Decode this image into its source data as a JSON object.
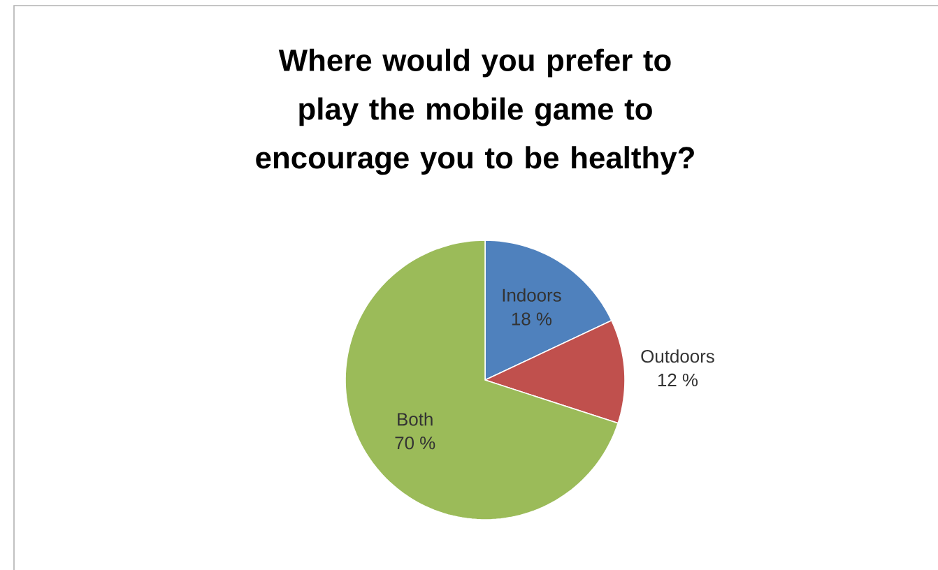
{
  "chart_data": {
    "type": "pie",
    "title": "Where would you prefer to play the mobile game to encourage you to be healthy?",
    "categories": [
      "Indoors",
      "Outdoors",
      "Both"
    ],
    "values": [
      18,
      12,
      70
    ],
    "value_labels": [
      "18 %",
      "12 %",
      "70 %"
    ],
    "colors": [
      "#4f81bd",
      "#c0504d",
      "#9bbb59"
    ]
  }
}
